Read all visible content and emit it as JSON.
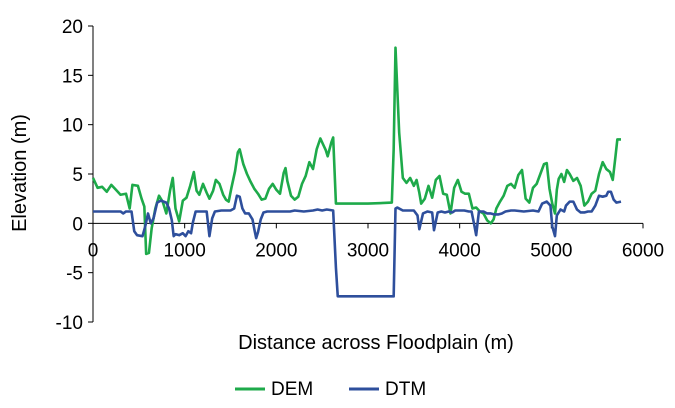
{
  "chart_data": {
    "type": "line",
    "title": "",
    "xlabel": "Distance across Floodplain (m)",
    "ylabel": "Elevation (m)",
    "xlim": [
      0,
      6000
    ],
    "ylim": [
      -10,
      20
    ],
    "x_ticks": [
      0,
      1000,
      2000,
      3000,
      4000,
      5000,
      6000
    ],
    "y_ticks": [
      -10,
      -5,
      0,
      5,
      10,
      15,
      20
    ],
    "x_tick_labels": [
      "0",
      "1000",
      "2000",
      "3000",
      "4000",
      "5000",
      "6000"
    ],
    "y_tick_labels": [
      "-10",
      "-5",
      "0",
      "5",
      "10",
      "15",
      "20"
    ],
    "grid": false,
    "legend_position": "bottom",
    "series": [
      {
        "name": "DEM",
        "color": "#1eaa4a",
        "points": [
          [
            0,
            4.6
          ],
          [
            50,
            3.6
          ],
          [
            100,
            3.7
          ],
          [
            150,
            3.2
          ],
          [
            200,
            3.9
          ],
          [
            250,
            3.4
          ],
          [
            300,
            2.9
          ],
          [
            360,
            3.0
          ],
          [
            400,
            1.5
          ],
          [
            430,
            3.9
          ],
          [
            490,
            3.8
          ],
          [
            530,
            2.5
          ],
          [
            560,
            1.7
          ],
          [
            580,
            -3.1
          ],
          [
            610,
            -3.0
          ],
          [
            640,
            -0.5
          ],
          [
            680,
            1.5
          ],
          [
            720,
            2.8
          ],
          [
            760,
            2.2
          ],
          [
            800,
            1.0
          ],
          [
            840,
            3.3
          ],
          [
            870,
            4.6
          ],
          [
            900,
            1.5
          ],
          [
            940,
            0.2
          ],
          [
            980,
            2.3
          ],
          [
            1020,
            2.6
          ],
          [
            1060,
            3.8
          ],
          [
            1100,
            5.2
          ],
          [
            1130,
            3.3
          ],
          [
            1160,
            2.9
          ],
          [
            1200,
            4.0
          ],
          [
            1240,
            3.1
          ],
          [
            1270,
            2.5
          ],
          [
            1310,
            3.3
          ],
          [
            1340,
            4.4
          ],
          [
            1380,
            4.0
          ],
          [
            1420,
            2.9
          ],
          [
            1450,
            2.4
          ],
          [
            1480,
            2.2
          ],
          [
            1510,
            3.6
          ],
          [
            1550,
            5.3
          ],
          [
            1580,
            7.2
          ],
          [
            1600,
            7.5
          ],
          [
            1640,
            6.0
          ],
          [
            1680,
            5.0
          ],
          [
            1720,
            4.2
          ],
          [
            1760,
            3.5
          ],
          [
            1800,
            3.0
          ],
          [
            1840,
            2.4
          ],
          [
            1880,
            2.5
          ],
          [
            1920,
            3.5
          ],
          [
            1960,
            4.0
          ],
          [
            2000,
            3.4
          ],
          [
            2040,
            3.0
          ],
          [
            2080,
            5.1
          ],
          [
            2100,
            5.6
          ],
          [
            2120,
            4.3
          ],
          [
            2160,
            2.8
          ],
          [
            2200,
            2.4
          ],
          [
            2240,
            2.7
          ],
          [
            2280,
            4.0
          ],
          [
            2320,
            4.8
          ],
          [
            2360,
            6.2
          ],
          [
            2400,
            5.5
          ],
          [
            2440,
            7.5
          ],
          [
            2480,
            8.6
          ],
          [
            2520,
            7.8
          ],
          [
            2540,
            7.4
          ],
          [
            2560,
            6.8
          ],
          [
            2600,
            8.2
          ],
          [
            2620,
            8.7
          ],
          [
            2650,
            2.0
          ],
          [
            3000,
            2.0
          ],
          [
            3260,
            2.1
          ],
          [
            3280,
            7.5
          ],
          [
            3300,
            17.8
          ],
          [
            3320,
            13.5
          ],
          [
            3340,
            9.2
          ],
          [
            3380,
            4.6
          ],
          [
            3420,
            4.1
          ],
          [
            3460,
            4.6
          ],
          [
            3500,
            3.8
          ],
          [
            3530,
            4.4
          ],
          [
            3560,
            3.1
          ],
          [
            3580,
            2.0
          ],
          [
            3620,
            2.5
          ],
          [
            3660,
            3.8
          ],
          [
            3700,
            2.6
          ],
          [
            3740,
            4.4
          ],
          [
            3780,
            4.8
          ],
          [
            3820,
            3.0
          ],
          [
            3860,
            2.9
          ],
          [
            3900,
            1.0
          ],
          [
            3940,
            3.6
          ],
          [
            3980,
            4.4
          ],
          [
            4020,
            3.2
          ],
          [
            4060,
            3.0
          ],
          [
            4100,
            3.0
          ],
          [
            4140,
            1.5
          ],
          [
            4180,
            1.6
          ],
          [
            4220,
            1.2
          ],
          [
            4260,
            1.0
          ],
          [
            4300,
            0.3
          ],
          [
            4340,
            0.0
          ],
          [
            4370,
            0.4
          ],
          [
            4400,
            1.5
          ],
          [
            4440,
            2.2
          ],
          [
            4480,
            2.8
          ],
          [
            4520,
            3.8
          ],
          [
            4560,
            4.0
          ],
          [
            4600,
            3.6
          ],
          [
            4640,
            4.9
          ],
          [
            4680,
            5.4
          ],
          [
            4720,
            2.5
          ],
          [
            4760,
            2.1
          ],
          [
            4800,
            3.6
          ],
          [
            4840,
            4.0
          ],
          [
            4880,
            5.0
          ],
          [
            4920,
            6.0
          ],
          [
            4950,
            6.1
          ],
          [
            4980,
            3.5
          ],
          [
            5010,
            2.0
          ],
          [
            5040,
            1.0
          ],
          [
            5060,
            3.4
          ],
          [
            5080,
            4.5
          ],
          [
            5110,
            5.0
          ],
          [
            5140,
            4.2
          ],
          [
            5170,
            5.4
          ],
          [
            5200,
            5.0
          ],
          [
            5240,
            4.3
          ],
          [
            5280,
            4.6
          ],
          [
            5320,
            3.8
          ],
          [
            5360,
            1.8
          ],
          [
            5400,
            2.2
          ],
          [
            5440,
            3.0
          ],
          [
            5480,
            3.3
          ],
          [
            5520,
            5.0
          ],
          [
            5560,
            6.2
          ],
          [
            5600,
            5.5
          ],
          [
            5640,
            5.2
          ],
          [
            5670,
            4.4
          ],
          [
            5700,
            6.8
          ],
          [
            5720,
            8.5
          ],
          [
            5760,
            8.5
          ]
        ]
      },
      {
        "name": "DTM",
        "color": "#2e4f9c",
        "points": [
          [
            0,
            1.2
          ],
          [
            100,
            1.2
          ],
          [
            200,
            1.2
          ],
          [
            300,
            1.2
          ],
          [
            330,
            1.0
          ],
          [
            360,
            1.2
          ],
          [
            420,
            1.2
          ],
          [
            450,
            -0.8
          ],
          [
            480,
            -1.2
          ],
          [
            540,
            -1.3
          ],
          [
            570,
            -0.3
          ],
          [
            600,
            1.0
          ],
          [
            630,
            0.0
          ],
          [
            660,
            0.5
          ],
          [
            700,
            2.1
          ],
          [
            740,
            2.3
          ],
          [
            800,
            2.1
          ],
          [
            830,
            1.5
          ],
          [
            860,
            0.3
          ],
          [
            880,
            -1.3
          ],
          [
            900,
            -1.1
          ],
          [
            940,
            -1.2
          ],
          [
            980,
            -1.0
          ],
          [
            1010,
            -1.3
          ],
          [
            1040,
            -0.8
          ],
          [
            1070,
            -1.0
          ],
          [
            1090,
            0.1
          ],
          [
            1120,
            1.2
          ],
          [
            1160,
            1.2
          ],
          [
            1200,
            1.2
          ],
          [
            1240,
            1.2
          ],
          [
            1270,
            -1.3
          ],
          [
            1300,
            0.5
          ],
          [
            1330,
            1.2
          ],
          [
            1400,
            1.3
          ],
          [
            1500,
            1.3
          ],
          [
            1540,
            1.5
          ],
          [
            1570,
            2.8
          ],
          [
            1600,
            2.7
          ],
          [
            1630,
            1.5
          ],
          [
            1660,
            1.0
          ],
          [
            1700,
            1.0
          ],
          [
            1740,
            0.4
          ],
          [
            1760,
            -0.6
          ],
          [
            1780,
            -1.5
          ],
          [
            1800,
            -0.9
          ],
          [
            1830,
            0.4
          ],
          [
            1860,
            1.1
          ],
          [
            1900,
            1.2
          ],
          [
            2000,
            1.2
          ],
          [
            2100,
            1.2
          ],
          [
            2150,
            1.2
          ],
          [
            2200,
            1.3
          ],
          [
            2300,
            1.2
          ],
          [
            2400,
            1.3
          ],
          [
            2450,
            1.4
          ],
          [
            2500,
            1.3
          ],
          [
            2550,
            1.4
          ],
          [
            2620,
            1.3
          ],
          [
            2650,
            -4.5
          ],
          [
            2670,
            -7.4
          ],
          [
            3000,
            -7.4
          ],
          [
            3280,
            -7.4
          ],
          [
            3300,
            1.5
          ],
          [
            3320,
            1.6
          ],
          [
            3380,
            1.3
          ],
          [
            3450,
            1.3
          ],
          [
            3500,
            1.3
          ],
          [
            3540,
            0.8
          ],
          [
            3560,
            -0.6
          ],
          [
            3600,
            1.0
          ],
          [
            3650,
            1.2
          ],
          [
            3700,
            1.1
          ],
          [
            3720,
            -0.7
          ],
          [
            3760,
            1.1
          ],
          [
            3800,
            1.2
          ],
          [
            3840,
            1.1
          ],
          [
            3880,
            1.2
          ],
          [
            3920,
            1.1
          ],
          [
            3950,
            1.3
          ],
          [
            4000,
            1.3
          ],
          [
            4050,
            1.3
          ],
          [
            4100,
            1.2
          ],
          [
            4130,
            1.2
          ],
          [
            4160,
            -0.2
          ],
          [
            4180,
            -1.2
          ],
          [
            4210,
            1.2
          ],
          [
            4260,
            1.2
          ],
          [
            4300,
            1.0
          ],
          [
            4340,
            1.0
          ],
          [
            4380,
            0.9
          ],
          [
            4420,
            0.9
          ],
          [
            4460,
            1.0
          ],
          [
            4500,
            1.2
          ],
          [
            4560,
            1.3
          ],
          [
            4600,
            1.3
          ],
          [
            4700,
            1.2
          ],
          [
            4800,
            1.3
          ],
          [
            4860,
            1.2
          ],
          [
            4900,
            2.0
          ],
          [
            4950,
            2.2
          ],
          [
            4990,
            1.8
          ],
          [
            5010,
            -0.3
          ],
          [
            5040,
            -1.3
          ],
          [
            5060,
            0.8
          ],
          [
            5100,
            1.4
          ],
          [
            5140,
            1.2
          ],
          [
            5160,
            1.8
          ],
          [
            5200,
            2.2
          ],
          [
            5240,
            2.2
          ],
          [
            5280,
            1.4
          ],
          [
            5320,
            1.1
          ],
          [
            5360,
            1.1
          ],
          [
            5400,
            1.2
          ],
          [
            5440,
            1.2
          ],
          [
            5480,
            1.8
          ],
          [
            5520,
            2.8
          ],
          [
            5560,
            2.7
          ],
          [
            5600,
            2.8
          ],
          [
            5620,
            3.2
          ],
          [
            5650,
            3.2
          ],
          [
            5680,
            2.4
          ],
          [
            5710,
            2.1
          ],
          [
            5760,
            2.2
          ]
        ]
      }
    ]
  }
}
